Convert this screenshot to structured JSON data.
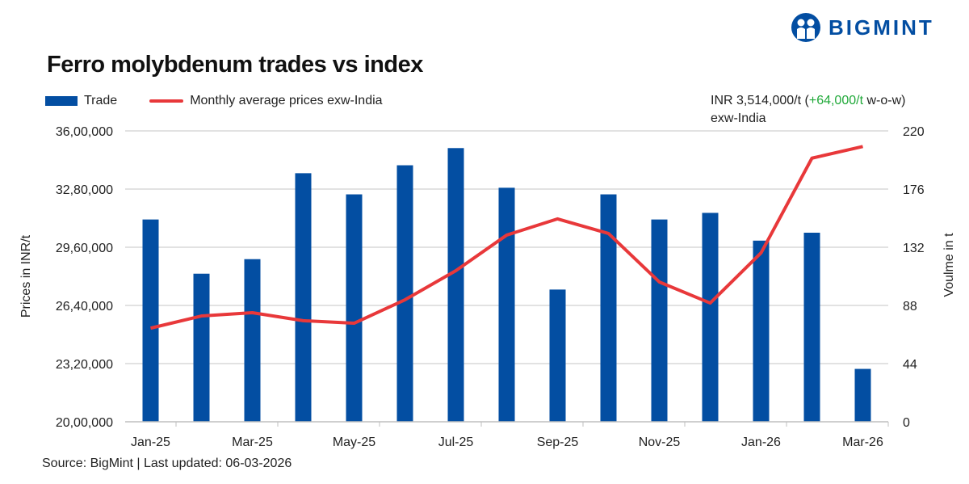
{
  "brand": {
    "name": "BIGMINT"
  },
  "title": "Ferro molybdenum trades vs index",
  "legend": {
    "bar": "Trade",
    "line": "Monthly average prices exw-India"
  },
  "note": {
    "prefix": "INR 3,514,000/t (",
    "change": "+64,000/t",
    "suffix": " w-o-w)",
    "line2": "exw-India"
  },
  "source": "Source: BigMint | Last updated: 06-03-2026",
  "colors": {
    "bar": "#034ea2",
    "line": "#e8383a",
    "positive": "#21a93a",
    "grid": "#d9d9d9"
  },
  "chart_data": {
    "type": "bar+line",
    "categories": [
      "Jan-25",
      "Feb-25",
      "Mar-25",
      "Apr-25",
      "May-25",
      "Jun-25",
      "Jul-25",
      "Aug-25",
      "Sep-25",
      "Oct-25",
      "Nov-25",
      "Dec-25",
      "Jan-26",
      "Feb-26",
      "Mar-26"
    ],
    "x_tick_labels": [
      "Jan-25",
      "Mar-25",
      "May-25",
      "Jul-25",
      "Sep-25",
      "Nov-25",
      "Jan-26",
      "Mar-26"
    ],
    "series": [
      {
        "name": "Trade",
        "type": "bar",
        "axis": "right",
        "values": [
          153,
          112,
          123,
          188,
          172,
          194,
          207,
          177,
          100,
          172,
          153,
          158,
          137,
          143,
          40
        ]
      },
      {
        "name": "Monthly average prices exw-India",
        "type": "line",
        "axis": "left",
        "values": [
          2515000,
          2582000,
          2600000,
          2556000,
          2542000,
          2671000,
          2831000,
          3027000,
          3116000,
          3036000,
          2769000,
          2653000,
          2929000,
          3450000,
          3514000
        ]
      }
    ],
    "ylabel": "Prices in INR/t",
    "y2label": "Voulme in t",
    "ylim": [
      2000000,
      3600000
    ],
    "y_ticks": [
      "20,00,000",
      "23,20,000",
      "26,40,000",
      "29,60,000",
      "32,80,000",
      "36,00,000"
    ],
    "y2lim": [
      0,
      220
    ],
    "y2_ticks": [
      "0",
      "44",
      "88",
      "132",
      "176",
      "220"
    ],
    "grid": true,
    "legend_position": "top-left"
  }
}
